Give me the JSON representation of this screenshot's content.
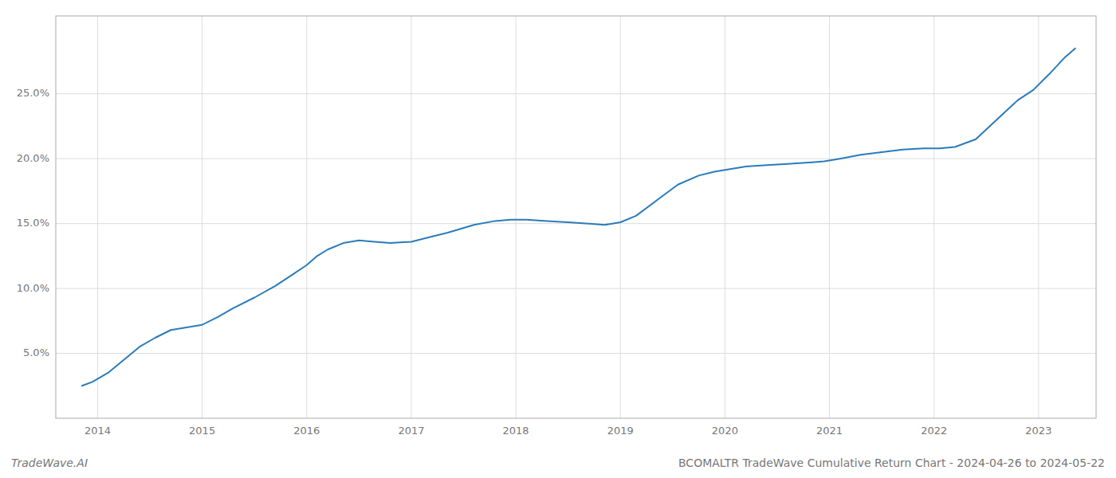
{
  "chart_data": {
    "type": "line",
    "title": "BCOMALTR TradeWave Cumulative Return Chart - 2024-04-26 to 2024-05-22",
    "annotations": [
      "TradeWave.AI"
    ],
    "color": "#2b7bba",
    "grid": true,
    "x": [
      2013.85,
      2013.95,
      2014.1,
      2014.25,
      2014.4,
      2014.55,
      2014.7,
      2014.85,
      2015.0,
      2015.15,
      2015.3,
      2015.5,
      2015.7,
      2015.85,
      2016.0,
      2016.1,
      2016.2,
      2016.35,
      2016.5,
      2016.65,
      2016.8,
      2017.0,
      2017.15,
      2017.35,
      2017.6,
      2017.8,
      2017.95,
      2018.1,
      2018.3,
      2018.5,
      2018.7,
      2018.85,
      2019.0,
      2019.15,
      2019.35,
      2019.55,
      2019.75,
      2019.9,
      2020.05,
      2020.2,
      2020.4,
      2020.6,
      2020.8,
      2020.95,
      2021.1,
      2021.3,
      2021.5,
      2021.7,
      2021.9,
      2022.05,
      2022.2,
      2022.4,
      2022.6,
      2022.8,
      2022.95,
      2023.1,
      2023.25,
      2023.35
    ],
    "values": [
      2.5,
      2.8,
      3.5,
      4.5,
      5.5,
      6.2,
      6.8,
      7.0,
      7.2,
      7.8,
      8.5,
      9.3,
      10.2,
      11.0,
      11.8,
      12.5,
      13.0,
      13.5,
      13.7,
      13.6,
      13.5,
      13.6,
      13.9,
      14.3,
      14.9,
      15.2,
      15.3,
      15.3,
      15.2,
      15.1,
      15.0,
      14.9,
      15.1,
      15.6,
      16.8,
      18.0,
      18.7,
      19.0,
      19.2,
      19.4,
      19.5,
      19.6,
      19.7,
      19.8,
      20.0,
      20.3,
      20.5,
      20.7,
      20.8,
      20.8,
      20.9,
      21.5,
      23.0,
      24.5,
      25.3,
      26.5,
      27.8,
      28.5
    ],
    "xlim": [
      2013.6,
      2023.55
    ],
    "xticks": [
      2014,
      2015,
      2016,
      2017,
      2018,
      2019,
      2020,
      2021,
      2022,
      2023
    ],
    "ylim": [
      0,
      31
    ],
    "yticks": [
      {
        "value": 5.0,
        "label": "5.0%"
      },
      {
        "value": 10.0,
        "label": "10.0%"
      },
      {
        "value": 15.0,
        "label": "15.0%"
      },
      {
        "value": 20.0,
        "label": "20.0%"
      },
      {
        "value": 25.0,
        "label": "25.0%"
      }
    ]
  }
}
